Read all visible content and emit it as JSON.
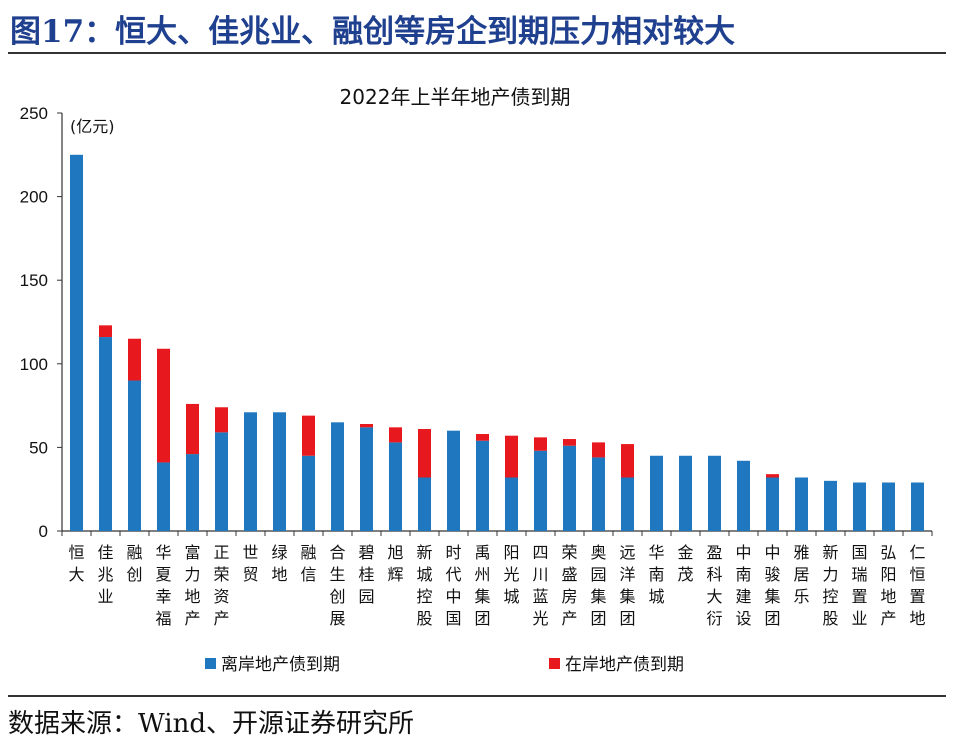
{
  "figure_title": "图17：恒大、佳兆业、融创等房企到期压力相对较大",
  "source": "数据来源：Wind、开源证券研究所",
  "colors": {
    "title": "#1f3f8f",
    "offshore": "#1f77c0",
    "onshore": "#e8191e"
  },
  "chart_data": {
    "type": "bar",
    "stacked": true,
    "title": "2022年上半年地产债到期",
    "ylabel": "(亿元)",
    "ylim": [
      0,
      250
    ],
    "yticks": [
      0,
      50,
      100,
      150,
      200,
      250
    ],
    "grid": false,
    "legend_position": "bottom",
    "categories": [
      "恒大",
      "佳兆业",
      "融创",
      "华夏幸福",
      "富力地产",
      "正荣资产",
      "世贸",
      "绿地",
      "融信",
      "合生创展",
      "碧桂园",
      "旭辉",
      "新城控股",
      "时代中国",
      "禹州集团",
      "阳光城",
      "四川蓝光",
      "荣盛房产",
      "奥园集团",
      "远洋集团",
      "华南城",
      "金茂",
      "盈科大衍",
      "中南建设",
      "中骏集团",
      "雅居乐",
      "新力控股",
      "国瑞置业",
      "弘阳地产",
      "仁恒置地"
    ],
    "series": [
      {
        "name": "离岸地产债到期",
        "values": [
          225,
          116,
          90,
          41,
          46,
          59,
          71,
          71,
          45,
          65,
          62,
          53,
          32,
          60,
          54,
          32,
          48,
          51,
          44,
          32,
          45,
          45,
          45,
          42,
          32,
          32,
          30,
          29,
          29,
          29
        ]
      },
      {
        "name": "在岸地产债到期",
        "values": [
          0,
          7,
          25,
          68,
          30,
          15,
          0,
          0,
          24,
          0,
          2,
          9,
          29,
          0,
          4,
          25,
          8,
          4,
          9,
          20,
          0,
          0,
          0,
          0,
          2,
          0,
          0,
          0,
          0,
          0
        ]
      }
    ]
  }
}
